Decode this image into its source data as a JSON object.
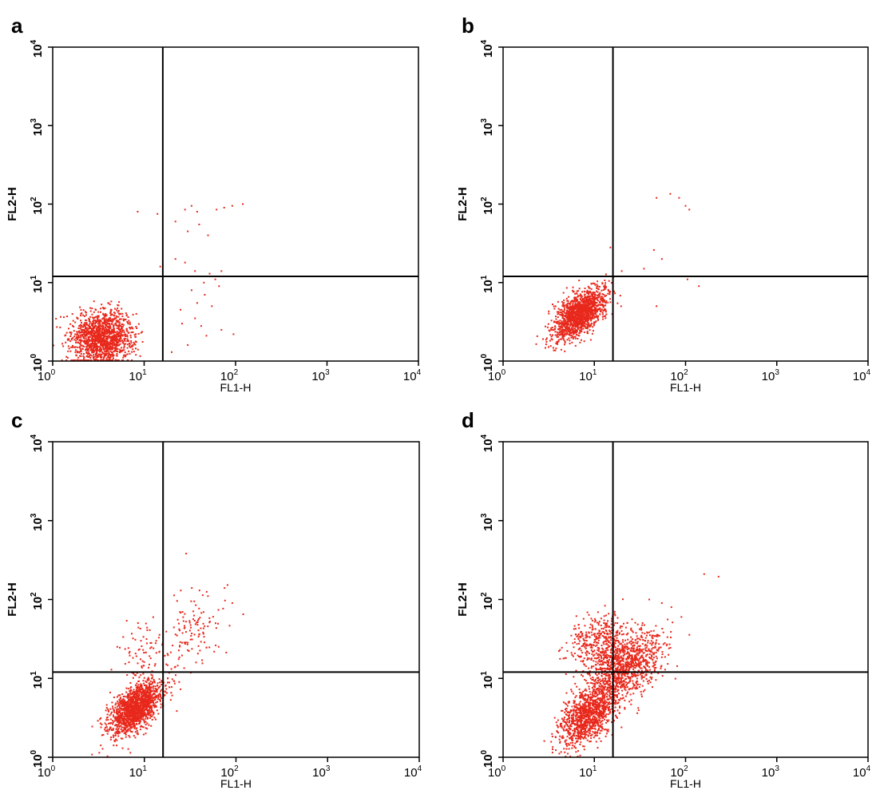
{
  "colors": {
    "dots": "#e8281c",
    "frame": "#000000",
    "gate": "#000000"
  },
  "chart_data": [
    {
      "panel": "a",
      "type": "scatter",
      "xlabel": "FL1-H",
      "ylabel": "FL2-H",
      "xscale": "log",
      "yscale": "log",
      "xlim": [
        1,
        10000
      ],
      "ylim": [
        1,
        10000
      ],
      "xticks": [
        {
          "base": "10",
          "exp": "0"
        },
        {
          "base": "10",
          "exp": "1"
        },
        {
          "base": "10",
          "exp": "2"
        },
        {
          "base": "10",
          "exp": "3"
        },
        {
          "base": "10",
          "exp": "4"
        }
      ],
      "yticks": [
        {
          "base": "10",
          "exp": "0"
        },
        {
          "base": "10",
          "exp": "1"
        },
        {
          "base": "10",
          "exp": "2"
        },
        {
          "base": "10",
          "exp": "3"
        },
        {
          "base": "10",
          "exp": "4"
        }
      ],
      "gate": {
        "x": 16,
        "y": 12
      },
      "clusters": [
        {
          "cx": 3.5,
          "cy": 2.0,
          "sx": 0.17,
          "sy": 0.17,
          "rho": 0.05,
          "n": 1400
        }
      ],
      "points": [
        [
          8.5,
          80
        ],
        [
          14,
          75
        ],
        [
          15,
          16
        ],
        [
          22,
          60
        ],
        [
          28,
          85
        ],
        [
          33,
          95
        ],
        [
          38,
          80
        ],
        [
          30,
          45
        ],
        [
          40,
          55
        ],
        [
          50,
          40
        ],
        [
          62,
          85
        ],
        [
          75,
          90
        ],
        [
          92,
          95
        ],
        [
          120,
          100
        ],
        [
          22,
          20
        ],
        [
          28,
          18
        ],
        [
          36,
          14
        ],
        [
          40,
          12
        ],
        [
          45,
          10
        ],
        [
          52,
          13
        ],
        [
          60,
          11
        ],
        [
          70,
          14
        ],
        [
          33,
          8
        ],
        [
          46,
          7
        ],
        [
          38,
          5.5
        ],
        [
          55,
          5
        ],
        [
          26,
          3
        ],
        [
          42,
          2.8
        ],
        [
          70,
          2.5
        ],
        [
          30,
          1.6
        ],
        [
          48,
          2.1
        ],
        [
          95,
          2.2
        ],
        [
          20,
          1.3
        ],
        [
          25,
          4.5
        ],
        [
          36,
          3.5
        ],
        [
          66,
          9
        ]
      ]
    },
    {
      "panel": "b",
      "type": "scatter",
      "xlabel": "FL1-H",
      "ylabel": "FL2-H",
      "xscale": "log",
      "yscale": "log",
      "xlim": [
        1,
        10000
      ],
      "ylim": [
        1,
        10000
      ],
      "xticks": [
        {
          "base": "10",
          "exp": "0"
        },
        {
          "base": "10",
          "exp": "1"
        },
        {
          "base": "10",
          "exp": "2"
        },
        {
          "base": "10",
          "exp": "3"
        },
        {
          "base": "10",
          "exp": "4"
        }
      ],
      "yticks": [
        {
          "base": "10",
          "exp": "0"
        },
        {
          "base": "10",
          "exp": "1"
        },
        {
          "base": "10",
          "exp": "2"
        },
        {
          "base": "10",
          "exp": "3"
        },
        {
          "base": "10",
          "exp": "4"
        }
      ],
      "gate": {
        "x": 16,
        "y": 12
      },
      "clusters": [
        {
          "cx": 7.0,
          "cy": 4.0,
          "sx": 0.14,
          "sy": 0.16,
          "rho": 0.55,
          "n": 1400
        }
      ],
      "points": [
        [
          48,
          120
        ],
        [
          68,
          135
        ],
        [
          85,
          120
        ],
        [
          100,
          95
        ],
        [
          110,
          85
        ],
        [
          45,
          26
        ],
        [
          55,
          20
        ],
        [
          35,
          15
        ],
        [
          80,
          12
        ],
        [
          105,
          11
        ],
        [
          140,
          9
        ],
        [
          48,
          5
        ],
        [
          15,
          28
        ],
        [
          20,
          14
        ]
      ]
    },
    {
      "panel": "c",
      "type": "scatter",
      "xlabel": "FL1-H",
      "ylabel": "FL2-H",
      "xscale": "log",
      "yscale": "log",
      "xlim": [
        1,
        10000
      ],
      "ylim": [
        1,
        10000
      ],
      "xticks": [
        {
          "base": "10",
          "exp": "0"
        },
        {
          "base": "10",
          "exp": "1"
        },
        {
          "base": "10",
          "exp": "2"
        },
        {
          "base": "10",
          "exp": "3"
        },
        {
          "base": "10",
          "exp": "4"
        }
      ],
      "yticks": [
        {
          "base": "10",
          "exp": "0"
        },
        {
          "base": "10",
          "exp": "1"
        },
        {
          "base": "10",
          "exp": "2"
        },
        {
          "base": "10",
          "exp": "3"
        },
        {
          "base": "10",
          "exp": "4"
        }
      ],
      "gate": {
        "x": 16,
        "y": 12
      },
      "clusters": [
        {
          "cx": 8.0,
          "cy": 4.2,
          "sx": 0.14,
          "sy": 0.17,
          "rho": 0.55,
          "n": 1500
        },
        {
          "cx": 9.0,
          "cy": 22,
          "sx": 0.13,
          "sy": 0.18,
          "rho": 0.1,
          "n": 60
        },
        {
          "cx": 32,
          "cy": 35,
          "sx": 0.2,
          "sy": 0.28,
          "rho": 0.5,
          "n": 130
        }
      ],
      "points": [
        [
          25,
          130
        ],
        [
          33,
          140
        ],
        [
          40,
          130
        ],
        [
          48,
          125
        ],
        [
          75,
          140
        ],
        [
          120,
          65
        ],
        [
          60,
          50
        ],
        [
          18,
          10
        ],
        [
          20,
          12
        ],
        [
          22,
          11
        ],
        [
          24,
          9
        ],
        [
          17,
          8
        ]
      ]
    },
    {
      "panel": "d",
      "type": "scatter",
      "xlabel": "FL1-H",
      "ylabel": "FL2-H",
      "xscale": "log",
      "yscale": "log",
      "xlim": [
        1,
        10000
      ],
      "ylim": [
        1,
        10000
      ],
      "xticks": [
        {
          "base": "10",
          "exp": "0"
        },
        {
          "base": "10",
          "exp": "1"
        },
        {
          "base": "10",
          "exp": "2"
        },
        {
          "base": "10",
          "exp": "3"
        },
        {
          "base": "10",
          "exp": "4"
        }
      ],
      "yticks": [
        {
          "base": "10",
          "exp": "0"
        },
        {
          "base": "10",
          "exp": "1"
        },
        {
          "base": "10",
          "exp": "2"
        },
        {
          "base": "10",
          "exp": "3"
        },
        {
          "base": "10",
          "exp": "4"
        }
      ],
      "gate": {
        "x": 16,
        "y": 12
      },
      "clusters": [
        {
          "cx": 8.5,
          "cy": 3.5,
          "sx": 0.15,
          "sy": 0.2,
          "rho": 0.5,
          "n": 1100
        },
        {
          "cx": 22,
          "cy": 14,
          "sx": 0.2,
          "sy": 0.22,
          "rho": 0.45,
          "n": 1000
        },
        {
          "cx": 11,
          "cy": 28,
          "sx": 0.16,
          "sy": 0.18,
          "rho": 0.2,
          "n": 380
        }
      ],
      "points": [
        [
          160,
          210
        ],
        [
          230,
          195
        ],
        [
          40,
          100
        ],
        [
          55,
          90
        ],
        [
          70,
          80
        ],
        [
          90,
          60
        ]
      ]
    }
  ]
}
